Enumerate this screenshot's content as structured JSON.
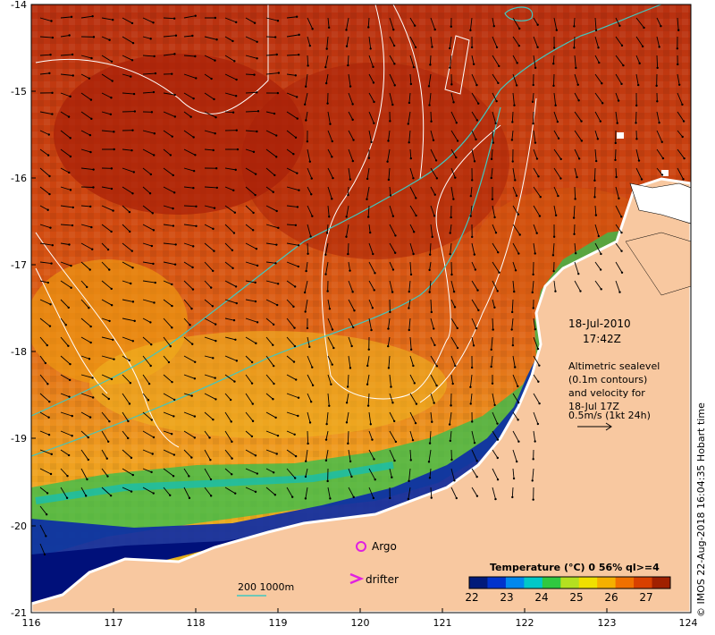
{
  "map": {
    "datetime_date": "18-Jul-2010",
    "datetime_time": "17:42Z",
    "legend_lines": [
      "Altimetric sealevel",
      "(0.1m contours)",
      "and velocity for",
      "18-Jul 17Z",
      "0.5m/s (1kt 24h)"
    ],
    "argo_label": "Argo",
    "drifter_label": "drifter",
    "scale_label": "200 1000m",
    "colorbar_title": "Temperature (°C) 0 56% ql>=4",
    "colorbar_ticks": [
      "22",
      "23",
      "24",
      "25",
      "26",
      "27"
    ],
    "colorbar_colors": [
      "#001a7a",
      "#0033cc",
      "#0088ee",
      "#00c8c8",
      "#30c840",
      "#b4e020",
      "#f0e000",
      "#f5b000",
      "#f07000",
      "#d84000",
      "#a02000"
    ],
    "credit": "© IMOS 22-Aug-2018 16:04:35 Hobart time",
    "y_ticks": [
      "-14",
      "-15",
      "-16",
      "-17",
      "-18",
      "-19",
      "-20",
      "-21"
    ],
    "x_ticks": [
      "116",
      "117",
      "118",
      "119",
      "120",
      "121",
      "122",
      "123",
      "124"
    ],
    "land_color": "#f8c8a0"
  }
}
